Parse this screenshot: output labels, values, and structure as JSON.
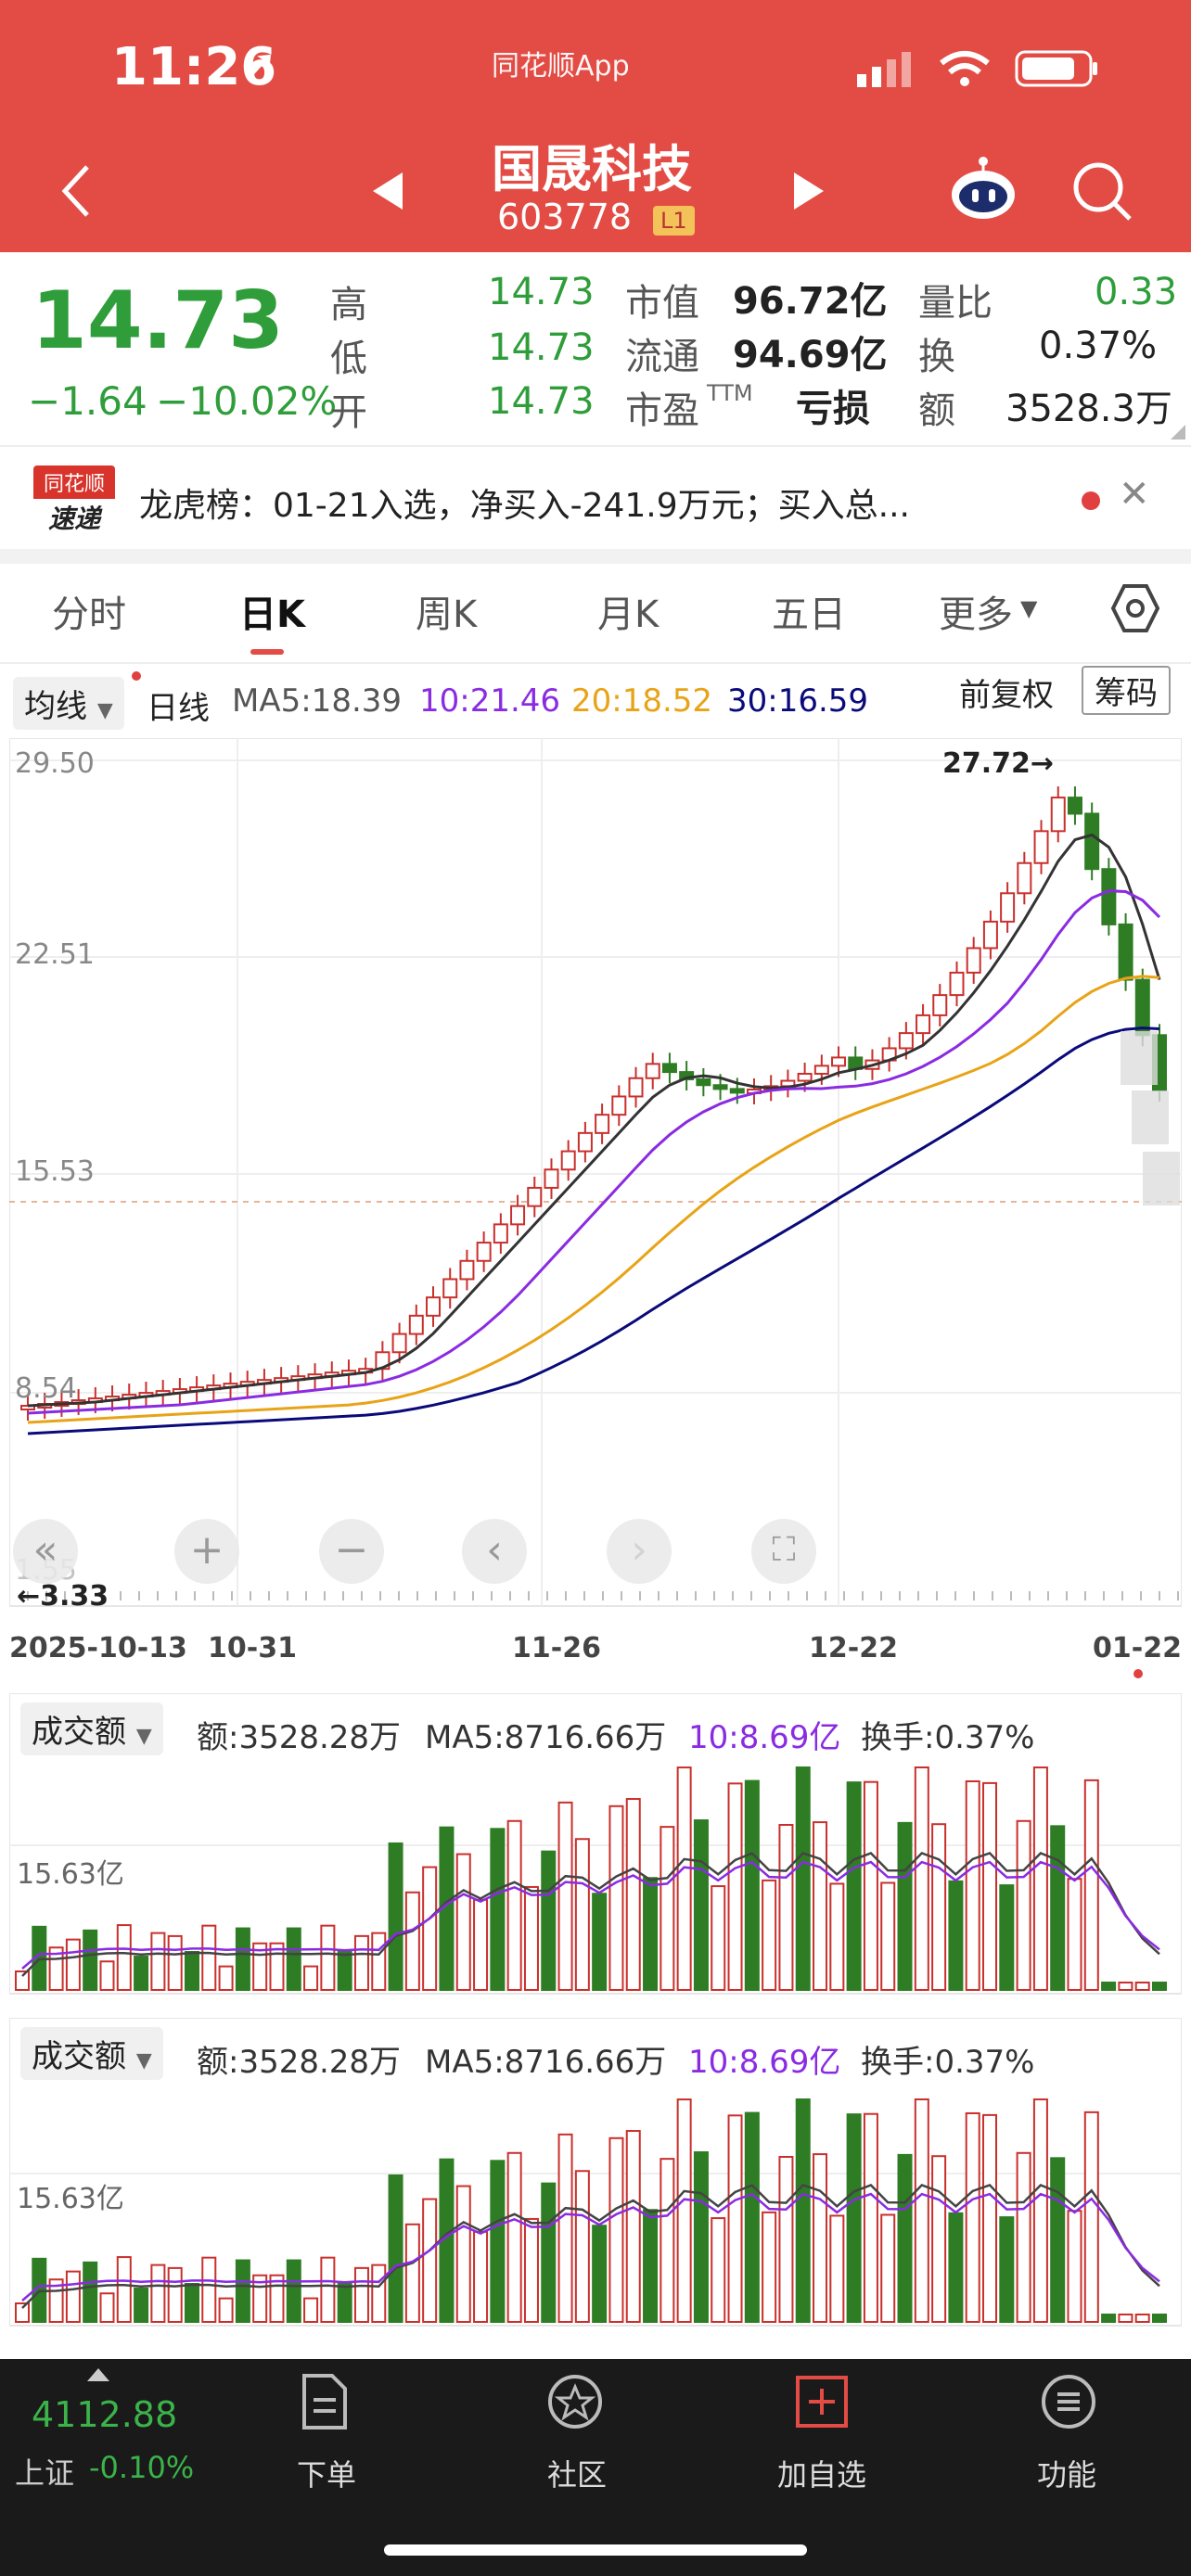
{
  "status_bar": {
    "time": "11:26",
    "app_name": "同花顺App"
  },
  "header": {
    "stock_name": "国晟科技",
    "stock_code": "603778",
    "level_badge": "L1"
  },
  "quote": {
    "price": "14.73",
    "change": "−1.64",
    "change_pct": "−10.02%",
    "high_label": "高",
    "high": "14.73",
    "low_label": "低",
    "low": "14.73",
    "open_label": "开",
    "open": "14.73",
    "mktcap_label": "市值",
    "mktcap": "96.72亿",
    "float_label": "流通",
    "float_cap": "94.69亿",
    "pe_label": "市盈",
    "pe_sup": "TTM",
    "pe": "亏损",
    "vol_ratio_label": "量比",
    "vol_ratio": "0.33",
    "turnover_label": "换",
    "turnover": "0.37%",
    "amount_label": "额",
    "amount": "3528.3万"
  },
  "news": {
    "logo_top": "同花顺",
    "logo_bottom": "速递",
    "text": "龙虎榜：01-21入选，净买入-241.9万元；买入总..."
  },
  "tabs": [
    "分时",
    "日K",
    "周K",
    "月K",
    "五日",
    "更多"
  ],
  "kline_header": {
    "indicator": "均线",
    "period": "日线",
    "ma5": "MA5:18.39",
    "ma10": "10:21.46",
    "ma20": "20:18.52",
    "ma30": "30:16.59",
    "adjust": "前复权",
    "chips": "筹码"
  },
  "price_axis": [
    "29.50",
    "22.51",
    "15.53",
    "8.54",
    "1.55"
  ],
  "max_label": "27.72→",
  "min_label": "←3.33",
  "date_axis": [
    "2025-10-13",
    "10-31",
    "11-26",
    "12-22",
    "01-22"
  ],
  "vol_panel": {
    "selector": "成交额",
    "amount": "额:3528.28万",
    "ma5": "MA5:8716.66万",
    "ma10": "10:8.69亿",
    "turnover": "换手:0.37%",
    "scale": "15.63亿"
  },
  "bottom_bar": {
    "index_value": "4112.88",
    "index_name": "上证",
    "index_change": "-0.10%",
    "items": [
      "下单",
      "社区",
      "加自选",
      "功能"
    ]
  },
  "colors": {
    "up": "#c9302c",
    "down": "#2e7d24",
    "header_bg": "#e24c45",
    "ma5": "#333333",
    "ma10": "#8a2be2",
    "ma20": "#e8a317",
    "ma30": "#0a0a7a"
  }
}
